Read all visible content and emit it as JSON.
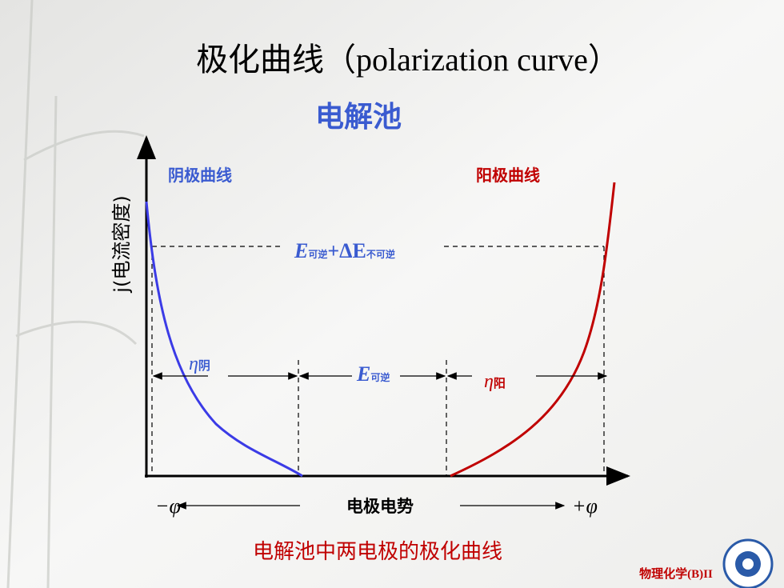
{
  "title": "极化曲线（polarization curve）",
  "subtitle": "电解池",
  "axis": {
    "y_label": "j(电流密度)",
    "x_label": "电极电势",
    "x_left": "−φ",
    "x_right": "+φ"
  },
  "curves": {
    "cathode": "阴极曲线",
    "anode": "阳极曲线"
  },
  "labels": {
    "total": {
      "symbol": "E",
      "sub1": "可逆",
      "plus": "+ΔE",
      "sub2": "不可逆"
    },
    "eta_cathode": {
      "symbol": "η",
      "sub": "阴"
    },
    "reversible": {
      "symbol": "E",
      "sub": "可逆"
    },
    "eta_anode": {
      "symbol": "η",
      "sub": "阳"
    }
  },
  "caption": "电解池中两电极的极化曲线",
  "footer": "物理化学(B)II"
}
